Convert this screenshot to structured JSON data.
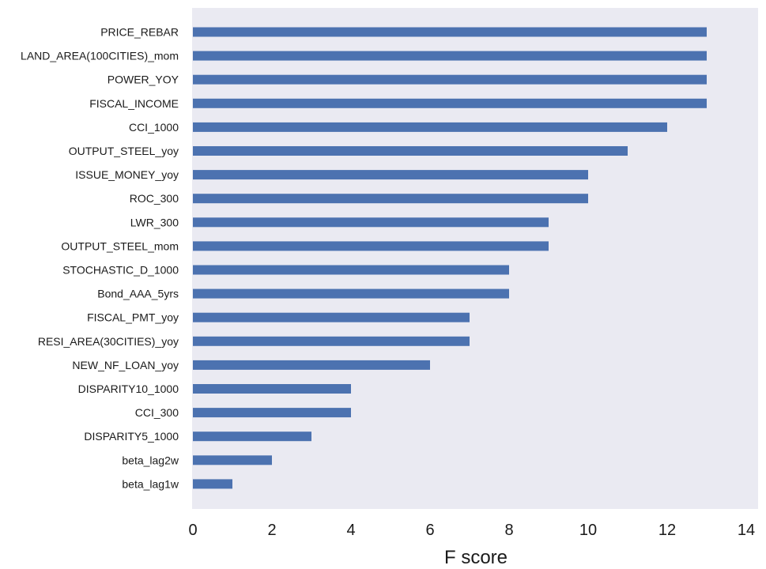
{
  "chart_data": {
    "type": "bar",
    "orientation": "horizontal",
    "title": "",
    "xlabel": "F score",
    "ylabel": "",
    "xlim": [
      0,
      14
    ],
    "x_ticks": [
      0,
      2,
      4,
      6,
      8,
      10,
      12,
      14
    ],
    "grid": false,
    "background_color": "#eaeaf2",
    "bar_color": "#4c72b0",
    "categories": [
      "PRICE_REBAR",
      "LAND_AREA(100CITIES)_mom",
      "POWER_YOY",
      "FISCAL_INCOME",
      "CCI_1000",
      "OUTPUT_STEEL_yoy",
      "ISSUE_MONEY_yoy",
      "ROC_300",
      "LWR_300",
      "OUTPUT_STEEL_mom",
      "STOCHASTIC_D_1000",
      "Bond_AAA_5yrs",
      "FISCAL_PMT_yoy",
      "RESI_AREA(30CITIES)_yoy",
      "NEW_NF_LOAN_yoy",
      "DISPARITY10_1000",
      "CCI_300",
      "DISPARITY5_1000",
      "beta_lag2w",
      "beta_lag1w"
    ],
    "values": [
      13,
      13,
      13,
      13,
      12,
      11,
      10,
      10,
      9,
      9,
      8,
      8,
      7,
      7,
      6,
      4,
      4,
      3,
      2,
      1
    ]
  }
}
